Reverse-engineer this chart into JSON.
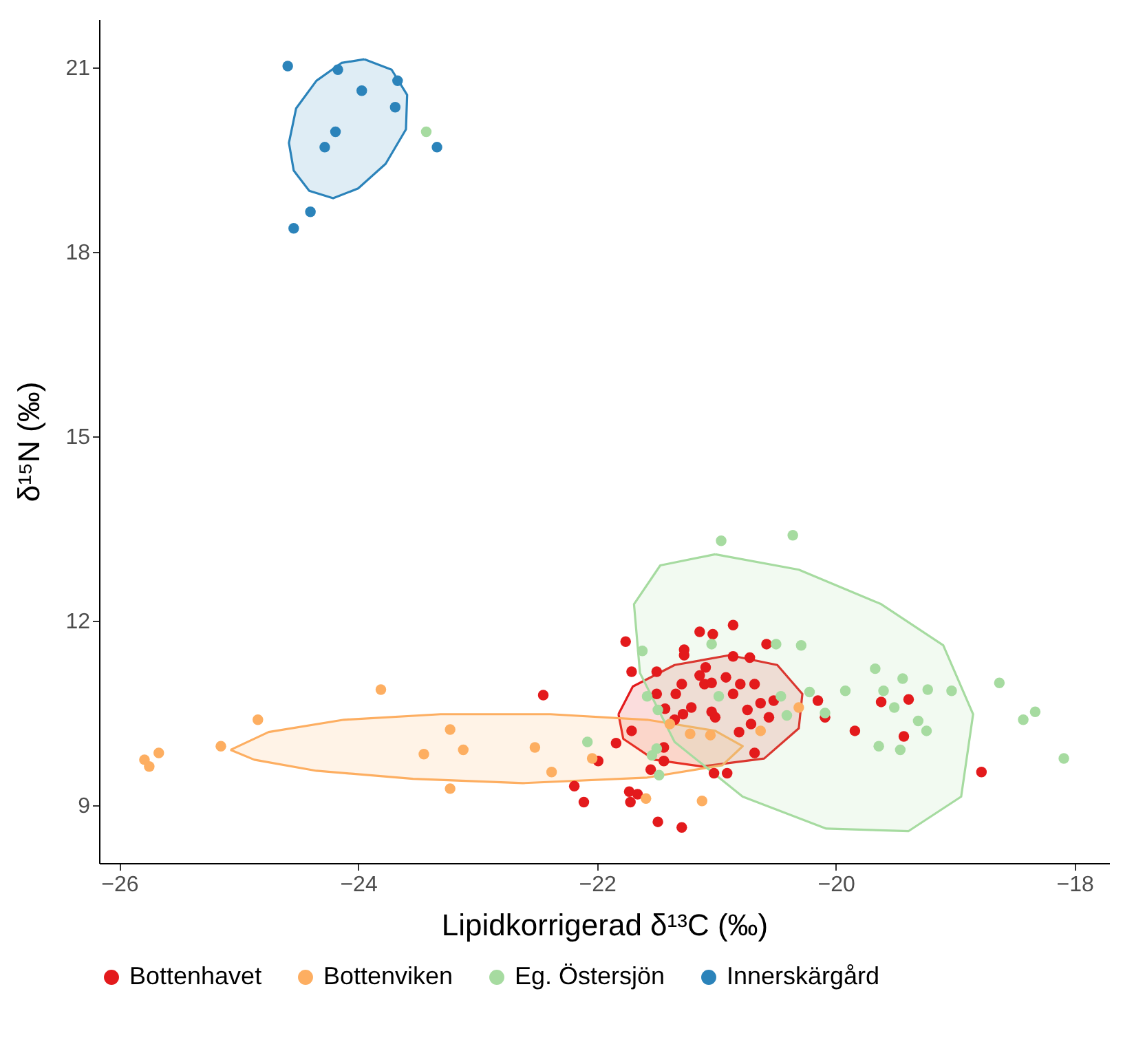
{
  "chart_data": {
    "type": "scatter",
    "xlabel": "Lipidkorrigerad δ¹³C (‰)",
    "ylabel": "δ¹⁵N (‰)",
    "xlim": [
      -26.17,
      -17.71
    ],
    "xticks": [
      -26,
      -24,
      -22,
      -20,
      -18
    ],
    "ylim": [
      8.06,
      21.78
    ],
    "yticks": [
      9,
      12,
      15,
      18,
      21
    ],
    "grid": false,
    "legend": "bottom",
    "marker": "circle",
    "series": [
      {
        "name": "Bottenhavet",
        "color": "#e31a1c",
        "x": [
          -22.45,
          -21.76,
          -21.71,
          -22.19,
          -22.11,
          -21.73,
          -21.66,
          -21.72,
          -21.49,
          -21.29,
          -21.71,
          -21.84,
          -21.99,
          -21.44,
          -21.44,
          -21.55,
          -21.02,
          -20.91,
          -21.14,
          -21.03,
          -20.86,
          -20.58,
          -21.27,
          -21.27,
          -21.5,
          -20.86,
          -20.72,
          -21.09,
          -21.14,
          -20.92,
          -21.29,
          -21.1,
          -21.04,
          -20.8,
          -20.68,
          -21.34,
          -20.86,
          -21.5,
          -21.43,
          -21.21,
          -21.28,
          -21.04,
          -21.01,
          -20.74,
          -20.63,
          -20.52,
          -20.56,
          -20.71,
          -20.81,
          -20.68,
          -20.15,
          -20.09,
          -19.84,
          -19.62,
          -19.39,
          -19.43,
          -18.78,
          -21.35
        ],
        "values": [
          10.79,
          11.66,
          11.17,
          9.31,
          9.05,
          9.22,
          9.18,
          9.05,
          8.73,
          8.64,
          10.21,
          10.01,
          9.72,
          9.72,
          9.94,
          9.58,
          9.52,
          9.52,
          11.82,
          11.78,
          11.93,
          11.62,
          11.53,
          11.44,
          11.17,
          11.42,
          11.4,
          11.24,
          11.11,
          11.08,
          10.97,
          10.97,
          10.99,
          10.97,
          10.97,
          10.81,
          10.81,
          10.81,
          10.57,
          10.59,
          10.48,
          10.52,
          10.43,
          10.55,
          10.66,
          10.7,
          10.43,
          10.32,
          10.19,
          9.85,
          10.7,
          10.43,
          10.21,
          10.68,
          10.72,
          10.12,
          9.54,
          10.39
        ]
      },
      {
        "name": "Bottenviken",
        "color": "#fdae61",
        "x": [
          -25.79,
          -25.75,
          -25.67,
          -25.15,
          -24.84,
          -23.81,
          -23.23,
          -23.45,
          -23.12,
          -23.23,
          -22.52,
          -22.38,
          -22.04,
          -21.59,
          -21.12,
          -20.63,
          -20.31,
          -21.05,
          -21.22,
          -21.39
        ],
        "values": [
          9.74,
          9.63,
          9.85,
          9.96,
          10.39,
          10.88,
          10.23,
          9.83,
          9.9,
          9.27,
          9.94,
          9.54,
          9.76,
          9.11,
          9.07,
          10.21,
          10.59,
          10.14,
          10.16,
          10.32
        ]
      },
      {
        "name": "Eg. Östersjön",
        "color": "#a6dba0",
        "x": [
          -23.43,
          -20.96,
          -20.36,
          -21.62,
          -21.04,
          -20.5,
          -20.29,
          -21.58,
          -20.98,
          -20.46,
          -20.22,
          -20.41,
          -21.49,
          -22.08,
          -21.5,
          -21.54,
          -21.48,
          -19.92,
          -19.67,
          -19.44,
          -19.6,
          -19.23,
          -19.03,
          -19.51,
          -19.31,
          -19.24,
          -19.64,
          -19.46,
          -18.63,
          -18.33,
          -18.43,
          -18.09,
          -20.09
        ],
        "values": [
          19.95,
          13.3,
          13.39,
          11.51,
          11.62,
          11.62,
          11.6,
          10.77,
          10.77,
          10.77,
          10.84,
          10.46,
          10.55,
          10.03,
          9.92,
          9.81,
          9.49,
          10.86,
          11.22,
          11.06,
          10.86,
          10.88,
          10.86,
          10.59,
          10.37,
          10.21,
          9.96,
          9.9,
          10.99,
          10.52,
          10.39,
          9.76,
          10.5
        ]
      },
      {
        "name": "Innerskärgård",
        "color": "#2b83ba",
        "x": [
          -24.59,
          -24.17,
          -23.97,
          -23.67,
          -23.69,
          -24.19,
          -24.28,
          -23.34,
          -24.4,
          -24.54
        ],
        "values": [
          21.02,
          20.96,
          20.62,
          20.78,
          20.35,
          19.95,
          19.7,
          19.7,
          18.65,
          18.38
        ]
      },
      {
        "type": "area",
        "marker": "none",
        "color": "#e31a1c",
        "x": [
          -21.82,
          -21.7,
          -21.35,
          -20.89,
          -20.49,
          -20.28,
          -20.31,
          -20.6,
          -21.12,
          -21.52,
          -21.78,
          -21.82
        ],
        "values": [
          10.48,
          10.93,
          11.28,
          11.44,
          11.28,
          10.81,
          10.25,
          9.76,
          9.63,
          9.74,
          10.08,
          10.48
        ]
      },
      {
        "type": "area",
        "marker": "none",
        "color": "#fdae61",
        "x": [
          -25.07,
          -24.75,
          -24.12,
          -23.31,
          -22.39,
          -21.58,
          -21.01,
          -20.78,
          -20.95,
          -21.58,
          -22.62,
          -23.54,
          -24.35,
          -24.87,
          -25.07
        ],
        "values": [
          9.9,
          10.19,
          10.39,
          10.48,
          10.48,
          10.39,
          10.21,
          9.96,
          9.65,
          9.45,
          9.36,
          9.43,
          9.56,
          9.74,
          9.9
        ]
      },
      {
        "type": "area",
        "marker": "none",
        "color": "#a6dba0",
        "x": [
          -21.01,
          -21.47,
          -21.69,
          -21.64,
          -21.35,
          -20.78,
          -20.08,
          -19.39,
          -18.95,
          -18.85,
          -19.1,
          -19.62,
          -20.31,
          -21.01
        ],
        "values": [
          13.08,
          12.9,
          12.27,
          11.15,
          10.03,
          9.14,
          8.62,
          8.58,
          9.14,
          10.48,
          11.6,
          12.27,
          12.83,
          13.08
        ]
      },
      {
        "type": "area",
        "marker": "none",
        "color": "#2b83ba",
        "x": [
          -23.95,
          -23.72,
          -23.59,
          -23.6,
          -23.77,
          -24.0,
          -24.21,
          -24.41,
          -24.54,
          -24.58,
          -24.52,
          -24.35,
          -24.14,
          -23.95
        ],
        "values": [
          21.13,
          20.96,
          20.55,
          19.99,
          19.43,
          19.03,
          18.87,
          18.99,
          19.32,
          19.77,
          20.33,
          20.78,
          21.07,
          21.13
        ]
      }
    ]
  }
}
